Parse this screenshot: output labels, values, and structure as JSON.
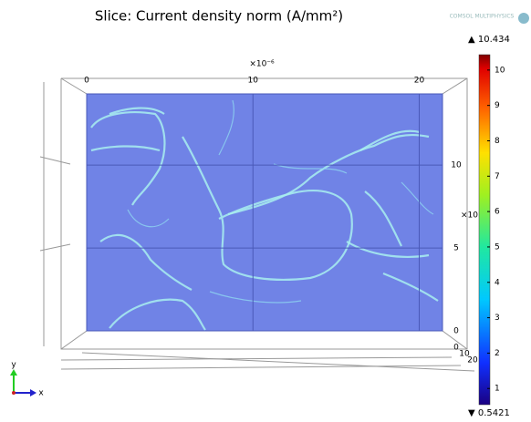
{
  "chart_data": {
    "type": "slice",
    "title": "Slice: Current density norm (A/mm²)",
    "logo": "COMSOL MULTIPHYSICS",
    "x_multiplier": "×10⁻⁶",
    "y_multiplier": "×10",
    "xlim": [
      0,
      21.4
    ],
    "xticks": [
      0,
      10,
      20
    ],
    "ylim": [
      0,
      14.3
    ],
    "yticks": [
      0,
      5,
      10
    ],
    "zticks": [
      0,
      10,
      20
    ],
    "clim": [
      0.5421,
      10.434
    ],
    "cticks": [
      1,
      2,
      3,
      4,
      5,
      6,
      7,
      8,
      9,
      10
    ],
    "max_label": "▲ 10.434",
    "min_label": "▼ 0.5421",
    "triad_labels": [
      "y",
      "x"
    ],
    "plane_color": "#7083e6",
    "grid": true
  }
}
